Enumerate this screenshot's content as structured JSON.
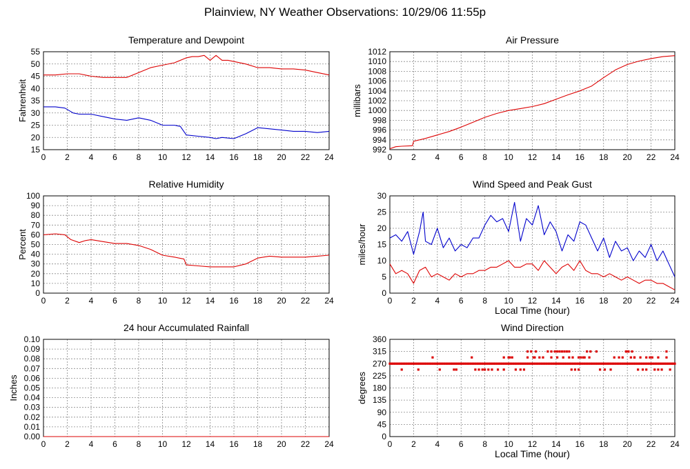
{
  "page": {
    "title": "Plainview, NY Weather Observations: 10/29/06 11:55p"
  },
  "colors": {
    "red": "#dd0000",
    "blue": "#0000cc",
    "grid": "#888888"
  },
  "chart_data": [
    {
      "id": "temp",
      "type": "line",
      "title": "Temperature and Dewpoint",
      "xlabel": "",
      "ylabel": "Fahrenheit",
      "xlim": [
        0,
        24
      ],
      "ylim": [
        15,
        55
      ],
      "xticks": [
        0,
        2,
        4,
        6,
        8,
        10,
        12,
        14,
        16,
        18,
        20,
        22,
        24
      ],
      "yticks": [
        15,
        20,
        25,
        30,
        35,
        40,
        45,
        50,
        55
      ],
      "series": [
        {
          "color": "#dd0000",
          "x": [
            0,
            1,
            2,
            3,
            4,
            5,
            6,
            7,
            8,
            9,
            10,
            11,
            12,
            12.5,
            13,
            13.5,
            14,
            14.5,
            15,
            15.5,
            16,
            17,
            18,
            19,
            20,
            21,
            22,
            23,
            24
          ],
          "y": [
            45.5,
            45.5,
            46,
            46,
            45,
            44.5,
            44.5,
            44.5,
            46.5,
            48.5,
            49.5,
            50.5,
            52.5,
            53,
            53,
            53.5,
            51.5,
            53.5,
            51.5,
            51.5,
            51,
            50,
            48.5,
            48.5,
            48,
            48,
            47.5,
            46.5,
            45.5
          ]
        },
        {
          "color": "#0000cc",
          "x": [
            0,
            1,
            1.8,
            2.5,
            3,
            4,
            5,
            6,
            7,
            8,
            9,
            10,
            11,
            11.5,
            12,
            13,
            14,
            14.5,
            15,
            16,
            17,
            18,
            19,
            20,
            21,
            22,
            23,
            24
          ],
          "y": [
            32.5,
            32.5,
            32,
            30,
            29.5,
            29.5,
            28.5,
            27.5,
            27,
            28,
            27,
            25,
            25,
            24.5,
            21,
            20.5,
            20,
            19.5,
            20,
            19.5,
            21.5,
            24,
            23.5,
            23,
            22.5,
            22.5,
            22,
            22.5
          ]
        }
      ]
    },
    {
      "id": "pressure",
      "type": "line",
      "title": "Air Pressure",
      "xlabel": "",
      "ylabel": "millibars",
      "xlim": [
        0,
        24
      ],
      "ylim": [
        992,
        1012
      ],
      "xticks": [
        0,
        2,
        4,
        6,
        8,
        10,
        12,
        14,
        16,
        18,
        20,
        22,
        24
      ],
      "yticks": [
        992,
        994,
        996,
        998,
        1000,
        1002,
        1004,
        1006,
        1008,
        1010,
        1012
      ],
      "series": [
        {
          "color": "#dd0000",
          "x": [
            0,
            0.5,
            1,
            1.9,
            2,
            3,
            4,
            5,
            6,
            7,
            8,
            9,
            10,
            11,
            12,
            13,
            14,
            15,
            16,
            17,
            18,
            19,
            20,
            21,
            22,
            23,
            24
          ],
          "y": [
            992.2,
            992.6,
            992.7,
            992.8,
            993.7,
            994.3,
            995,
            995.7,
            996.6,
            997.6,
            998.6,
            999.4,
            1000,
            1000.4,
            1000.8,
            1001.4,
            1002.3,
            1003.2,
            1004,
            1005,
            1006.7,
            1008.3,
            1009.4,
            1010.1,
            1010.6,
            1011,
            1011.2
          ]
        }
      ]
    },
    {
      "id": "humidity",
      "type": "line",
      "title": "Relative Humidity",
      "xlabel": "",
      "ylabel": "Percent",
      "xlim": [
        0,
        24
      ],
      "ylim": [
        0,
        100
      ],
      "xticks": [
        0,
        2,
        4,
        6,
        8,
        10,
        12,
        14,
        16,
        18,
        20,
        22,
        24
      ],
      "yticks": [
        0,
        10,
        20,
        30,
        40,
        50,
        60,
        70,
        80,
        90,
        100
      ],
      "series": [
        {
          "color": "#dd0000",
          "x": [
            0,
            1,
            1.8,
            2.3,
            3,
            3.5,
            4,
            5,
            6,
            7,
            8,
            9,
            10,
            11,
            11.8,
            12,
            13,
            14,
            15,
            16,
            17,
            18,
            19,
            20,
            21,
            22,
            23,
            24
          ],
          "y": [
            60,
            61,
            60,
            55,
            52,
            54,
            55,
            53,
            51,
            51,
            49,
            45,
            39,
            37,
            35,
            29,
            28,
            27,
            27,
            27,
            30,
            36,
            38,
            37,
            37,
            37,
            38,
            39
          ]
        }
      ]
    },
    {
      "id": "wind",
      "type": "line",
      "title": "Wind Speed and Peak Gust",
      "xlabel": "Local Time (hour)",
      "ylabel": "miles/hour",
      "xlim": [
        0,
        24
      ],
      "ylim": [
        0,
        30
      ],
      "xticks": [
        0,
        2,
        4,
        6,
        8,
        10,
        12,
        14,
        16,
        18,
        20,
        22,
        24
      ],
      "yticks": [
        0,
        5,
        10,
        15,
        20,
        25,
        30
      ],
      "series": [
        {
          "color": "#0000cc",
          "x": [
            0,
            0.5,
            1,
            1.5,
            2,
            2.5,
            2.8,
            3,
            3.5,
            4,
            4.5,
            5,
            5.5,
            6,
            6.5,
            7,
            7.5,
            8,
            8.5,
            9,
            9.5,
            10,
            10.5,
            11,
            11.5,
            12,
            12.5,
            13,
            13.5,
            14,
            14.5,
            15,
            15.5,
            16,
            16.5,
            17,
            17.5,
            18,
            18.5,
            19,
            19.5,
            20,
            20.5,
            21,
            21.5,
            22,
            22.5,
            23,
            23.5,
            24
          ],
          "y": [
            17,
            18,
            16,
            19,
            12,
            19,
            25,
            16,
            15,
            20,
            14,
            17,
            13,
            15,
            14,
            17,
            17,
            21,
            24,
            22,
            23,
            19,
            28,
            16,
            23,
            21,
            27,
            18,
            22,
            19,
            13,
            18,
            16,
            22,
            21,
            17,
            13,
            17,
            11,
            16,
            13,
            14,
            10,
            13,
            11,
            15,
            10,
            13,
            9,
            5
          ]
        },
        {
          "color": "#dd0000",
          "x": [
            0,
            0.5,
            1,
            1.5,
            2,
            2.5,
            3,
            3.5,
            4,
            4.5,
            5,
            5.5,
            6,
            6.5,
            7,
            7.5,
            8,
            8.5,
            9,
            9.5,
            10,
            10.5,
            11,
            11.5,
            12,
            12.5,
            13,
            13.5,
            14,
            14.5,
            15,
            15.5,
            16,
            16.5,
            17,
            17.5,
            18,
            18.5,
            19,
            19.5,
            20,
            20.5,
            21,
            21.5,
            22,
            22.5,
            23,
            23.5,
            24
          ],
          "y": [
            9,
            6,
            7,
            6,
            3,
            7,
            8,
            5,
            6,
            5,
            4,
            6,
            5,
            6,
            6,
            7,
            7,
            8,
            8,
            9,
            10,
            8,
            8,
            9,
            9,
            7,
            10,
            8,
            6,
            8,
            9,
            7,
            10,
            7,
            6,
            6,
            5,
            6,
            5,
            4,
            5,
            4,
            3,
            4,
            4,
            3,
            3,
            2,
            1
          ]
        }
      ]
    },
    {
      "id": "rain",
      "type": "line",
      "title": "24 hour Accumulated Rainfall",
      "xlabel": "",
      "ylabel": "Inches",
      "xlim": [
        0,
        24
      ],
      "ylim": [
        0,
        0.1
      ],
      "xticks": [
        0,
        2,
        4,
        6,
        8,
        10,
        12,
        14,
        16,
        18,
        20,
        22,
        24
      ],
      "yticks": [
        "0.00",
        "0.01",
        "0.02",
        "0.03",
        "0.04",
        "0.05",
        "0.06",
        "0.07",
        "0.08",
        "0.09",
        "0.10"
      ],
      "series": [
        {
          "color": "#dd0000",
          "x": [
            0,
            24
          ],
          "y": [
            0,
            0
          ]
        }
      ]
    },
    {
      "id": "direction",
      "type": "scatter",
      "title": "Wind Direction",
      "xlabel": "Local Time (hour)",
      "ylabel": "degrees",
      "xlim": [
        0,
        24
      ],
      "ylim": [
        0,
        360
      ],
      "xticks": [
        0,
        2,
        4,
        6,
        8,
        10,
        12,
        14,
        16,
        18,
        20,
        22,
        24
      ],
      "yticks": [
        0,
        45,
        90,
        135,
        180,
        225,
        270,
        315,
        360
      ],
      "series": [
        {
          "color": "#dd0000",
          "x": [
            0,
            0.2,
            0.4,
            0.6,
            0.8,
            1,
            1.2,
            1.4,
            1.6,
            1.8,
            2,
            2.2,
            2.4,
            2.6,
            2.8,
            3,
            3.2,
            3.4,
            3.6,
            3.8,
            4,
            4.2,
            4.4,
            4.6,
            4.8,
            5,
            5.2,
            5.4,
            5.6,
            5.8,
            6,
            6.2,
            6.4,
            6.6,
            6.8,
            7,
            7.2,
            7.4,
            7.6,
            7.8,
            8,
            8.2,
            8.4,
            8.6,
            8.8,
            9,
            9.2,
            9.4,
            9.6,
            9.8,
            10,
            10.2,
            10.4,
            10.6,
            10.8,
            11,
            11.2,
            11.4,
            11.6,
            11.8,
            12,
            12.2,
            12.4,
            12.6,
            12.8,
            13,
            13.2,
            13.4,
            13.6,
            13.8,
            14,
            14.2,
            14.4,
            14.6,
            14.8,
            15,
            15.2,
            15.4,
            15.6,
            15.8,
            16,
            16.2,
            16.4,
            16.6,
            16.8,
            17,
            17.2,
            17.4,
            17.6,
            17.8,
            18,
            18.2,
            18.4,
            18.6,
            18.8,
            19,
            19.2,
            19.4,
            19.6,
            19.8,
            20,
            20.2,
            20.4,
            20.6,
            20.8,
            21,
            21.2,
            21.4,
            21.6,
            21.8,
            22,
            22.2,
            22.4,
            22.6,
            22.8,
            23,
            23.2,
            23.4,
            23.6,
            23.8,
            24,
            1,
            2.4,
            3.6,
            4.2,
            5.4,
            5.6,
            6.9,
            7.2,
            7.5,
            7.8,
            8,
            8.3,
            8.6,
            9.1,
            9.6,
            10,
            10.3,
            10.6,
            11,
            11.3,
            11.6,
            11.9,
            12.2,
            12.6,
            12.9,
            13.3,
            13.6,
            13.9,
            14.1,
            14.3,
            14.5,
            14.7,
            14.9,
            15.1,
            15.3,
            15.6,
            15.9,
            16.1,
            16.3,
            16.6,
            16.9,
            17.4,
            17.7,
            18.1,
            18.6,
            18.9,
            19.3,
            19.6,
            19.9,
            20.1,
            20.4,
            20.6,
            20.9,
            21.3,
            21.6,
            21.9,
            22.3,
            22.6,
            22.9,
            23.3,
            23.6,
            9.6,
            10.1,
            11.6,
            12.1,
            12.3,
            13.6,
            14.1,
            14.6,
            15.1,
            15.4,
            15.9,
            16.4,
            16.8,
            19.9,
            20.1,
            20.3,
            20.6,
            21.1,
            21.6,
            22.1,
            22.6,
            23.3
          ],
          "y": [
            270,
            270,
            270,
            270,
            270,
            270,
            270,
            270,
            270,
            270,
            270,
            270,
            270,
            270,
            270,
            270,
            270,
            270,
            270,
            270,
            270,
            270,
            270,
            270,
            270,
            270,
            270,
            270,
            270,
            270,
            270,
            270,
            270,
            270,
            270,
            270,
            270,
            270,
            270,
            270,
            270,
            270,
            270,
            270,
            270,
            270,
            270,
            270,
            270,
            270,
            270,
            270,
            270,
            270,
            270,
            270,
            270,
            270,
            270,
            270,
            270,
            270,
            270,
            270,
            270,
            270,
            270,
            270,
            270,
            270,
            270,
            270,
            270,
            270,
            270,
            270,
            270,
            270,
            270,
            270,
            270,
            270,
            270,
            270,
            270,
            270,
            270,
            270,
            270,
            270,
            270,
            270,
            270,
            270,
            270,
            270,
            270,
            270,
            270,
            270,
            270,
            270,
            270,
            270,
            270,
            270,
            270,
            270,
            270,
            270,
            270,
            270,
            270,
            270,
            270,
            270,
            270,
            270,
            270,
            270,
            270,
            248,
            248,
            293,
            248,
            248,
            248,
            293,
            248,
            248,
            248,
            248,
            248,
            248,
            248,
            248,
            293,
            293,
            248,
            248,
            248,
            293,
            315,
            293,
            293,
            293,
            315,
            315,
            315,
            315,
            315,
            315,
            315,
            315,
            315,
            248,
            248,
            248,
            293,
            293,
            315,
            315,
            315,
            248,
            248,
            248,
            293,
            293,
            293,
            315,
            315,
            315,
            293,
            248,
            248,
            248,
            293,
            248,
            248,
            248,
            315,
            248,
            293,
            293,
            315,
            293,
            315,
            293,
            293,
            293,
            293,
            293,
            293,
            293,
            293,
            315,
            315,
            293,
            293,
            293,
            293,
            293,
            293,
            293
          ]
        }
      ]
    }
  ]
}
